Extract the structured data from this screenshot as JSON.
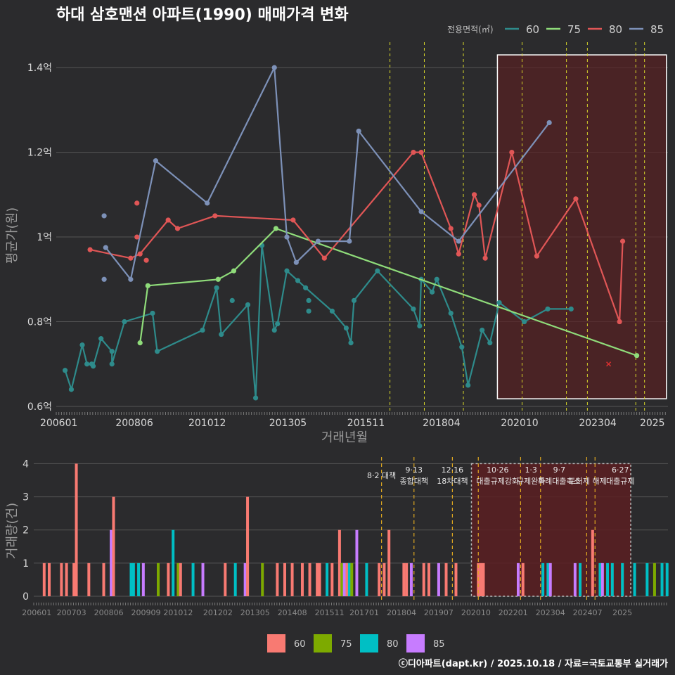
{
  "chart_data": [
    {
      "type": "line",
      "title": "하대 삼호맨션 아파트(1990) 매매가격 변화",
      "xlabel": "거래년월",
      "ylabel": "평균가(원)",
      "ylim": [
        0.59,
        1.46
      ],
      "y_unit": "억",
      "y_ticks": [
        {
          "value": 0.6,
          "label": "0.6억"
        },
        {
          "value": 0.8,
          "label": "0.8억"
        },
        {
          "value": 1.0,
          "label": "1억"
        },
        {
          "value": 1.2,
          "label": "1.2억"
        },
        {
          "value": 1.4,
          "label": "1.4억"
        }
      ],
      "x_range": [
        2005.917,
        2025.5
      ],
      "x_ticks": [
        {
          "value": 2006.0,
          "label": "200601"
        },
        {
          "value": 2008.417,
          "label": "200806"
        },
        {
          "value": 2010.75,
          "label": "201012"
        },
        {
          "value": 2013.333,
          "label": "201305"
        },
        {
          "value": 2015.833,
          "label": "201511"
        },
        {
          "value": 2018.25,
          "label": "201804"
        },
        {
          "value": 2020.75,
          "label": "202010"
        },
        {
          "value": 2023.25,
          "label": "202304"
        },
        {
          "value": 2025.0,
          "label": "2025"
        }
      ],
      "legend_title": "전용면적(㎡)",
      "legend_placement": "top-right",
      "series": [
        {
          "name": "60",
          "color": "#2e8b8b",
          "points": [
            [
              2006.2,
              0.685
            ],
            [
              2006.4,
              0.64
            ],
            [
              2006.75,
              0.745
            ],
            [
              2006.9,
              0.7
            ],
            [
              2007.05,
              0.7
            ],
            [
              2007.1,
              0.695
            ],
            [
              2007.35,
              0.76
            ],
            [
              2007.7,
              0.73
            ],
            [
              2007.7,
              0.7
            ],
            [
              2008.1,
              0.8
            ],
            [
              2009.0,
              0.82
            ],
            [
              2009.15,
              0.73
            ],
            [
              2010.6,
              0.78
            ],
            [
              2011.05,
              0.88
            ],
            [
              2011.2,
              0.77
            ],
            [
              2012.05,
              0.84
            ],
            [
              2012.3,
              0.62
            ],
            [
              2012.5,
              0.98
            ],
            [
              2012.9,
              0.78
            ],
            [
              2013.0,
              0.795
            ],
            [
              2013.3,
              0.92
            ],
            [
              2013.65,
              0.897
            ],
            [
              2013.9,
              0.88
            ],
            [
              2014.75,
              0.825
            ],
            [
              2015.2,
              0.785
            ],
            [
              2015.35,
              0.75
            ],
            [
              2015.45,
              0.85
            ],
            [
              2016.2,
              0.92
            ],
            [
              2017.35,
              0.83
            ],
            [
              2017.55,
              0.79
            ],
            [
              2017.6,
              0.9
            ],
            [
              2017.95,
              0.87
            ],
            [
              2018.1,
              0.9
            ],
            [
              2018.55,
              0.82
            ],
            [
              2018.9,
              0.74
            ],
            [
              2019.1,
              0.65
            ],
            [
              2019.55,
              0.78
            ],
            [
              2019.8,
              0.75
            ],
            [
              2020.1,
              0.845
            ],
            [
              2020.9,
              0.8
            ],
            [
              2021.65,
              0.83
            ],
            [
              2022.4,
              0.83
            ]
          ]
        },
        {
          "name": "75",
          "color": "#8fdc7a",
          "points": [
            [
              2008.6,
              0.75
            ],
            [
              2008.85,
              0.885
            ],
            [
              2011.1,
              0.9
            ],
            [
              2011.6,
              0.92
            ],
            [
              2012.95,
              1.02
            ],
            [
              2024.5,
              0.72
            ]
          ]
        },
        {
          "name": "80",
          "color": "#e05656",
          "points": [
            [
              2007.0,
              0.97
            ],
            [
              2008.3,
              0.95
            ],
            [
              2008.6,
              0.96
            ],
            [
              2009.5,
              1.04
            ],
            [
              2009.8,
              1.02
            ],
            [
              2011.0,
              1.05
            ],
            [
              2013.5,
              1.04
            ],
            [
              2014.5,
              0.95
            ],
            [
              2017.35,
              1.2
            ],
            [
              2017.6,
              1.2
            ],
            [
              2018.55,
              1.02
            ],
            [
              2018.8,
              0.96
            ],
            [
              2019.3,
              1.1
            ],
            [
              2019.45,
              1.075
            ],
            [
              2019.65,
              0.95
            ],
            [
              2020.5,
              1.2
            ],
            [
              2021.3,
              0.955
            ],
            [
              2022.55,
              1.09
            ],
            [
              2023.95,
              0.8
            ],
            [
              2024.05,
              0.99
            ]
          ]
        },
        {
          "name": "85",
          "color": "#7d91b8",
          "points": [
            [
              2007.5,
              0.975
            ],
            [
              2008.3,
              0.9
            ],
            [
              2009.1,
              1.18
            ],
            [
              2010.75,
              1.08
            ],
            [
              2012.9,
              1.4
            ],
            [
              2013.3,
              1.0
            ],
            [
              2013.6,
              0.94
            ],
            [
              2014.3,
              0.99
            ],
            [
              2015.3,
              0.99
            ],
            [
              2015.6,
              1.25
            ],
            [
              2017.6,
              1.06
            ],
            [
              2018.8,
              0.99
            ],
            [
              2021.7,
              1.27
            ]
          ]
        }
      ],
      "isolated_points": [
        {
          "series": "85",
          "x": 2007.45,
          "y": 1.05
        },
        {
          "series": "85",
          "x": 2007.45,
          "y": 0.9
        },
        {
          "series": "80",
          "x": 2008.5,
          "y": 1.08
        },
        {
          "series": "80",
          "x": 2008.5,
          "y": 1.0
        },
        {
          "series": "80",
          "x": 2008.8,
          "y": 0.945
        },
        {
          "series": "60",
          "x": 2011.55,
          "y": 0.85
        },
        {
          "series": "60",
          "x": 2014.0,
          "y": 0.85
        },
        {
          "series": "60",
          "x": 2014.0,
          "y": 0.825
        }
      ],
      "marker_x": {
        "x": 2023.6,
        "y": 0.7,
        "color": "#e03030"
      },
      "policy_lines": [
        2016.6,
        2017.7,
        2018.95,
        2020.83,
        2022.25,
        2022.92,
        2024.47,
        2024.75
      ],
      "highlight_range": [
        2020.04,
        2025.45
      ]
    },
    {
      "type": "bar",
      "ylabel": "거래량(건)",
      "ylim": [
        0,
        4.2
      ],
      "y_ticks": [
        0,
        1,
        2,
        3,
        4
      ],
      "x_ticks": [
        {
          "value": 2006.0,
          "label": "200601"
        },
        {
          "value": 2007.167,
          "label": "200703"
        },
        {
          "value": 2008.417,
          "label": "200806"
        },
        {
          "value": 2009.667,
          "label": "200909"
        },
        {
          "value": 2010.75,
          "label": "201012"
        },
        {
          "value": 2012.083,
          "label": "201202"
        },
        {
          "value": 2013.333,
          "label": "201305"
        },
        {
          "value": 2014.583,
          "label": "201408"
        },
        {
          "value": 2015.833,
          "label": "201511"
        },
        {
          "value": 2017.0,
          "label": "201701"
        },
        {
          "value": 2018.25,
          "label": "201804"
        },
        {
          "value": 2019.5,
          "label": "201907"
        },
        {
          "value": 2020.75,
          "label": "202010"
        },
        {
          "value": 2022.0,
          "label": "202201"
        },
        {
          "value": 2023.25,
          "label": "202304"
        },
        {
          "value": 2024.5,
          "label": "202407"
        },
        {
          "value": 2025.667,
          "label": "2025"
        }
      ],
      "legend_placement": "bottom",
      "legend": [
        {
          "name": "60",
          "color": "#f87a72"
        },
        {
          "name": "75",
          "color": "#7daa00"
        },
        {
          "name": "80",
          "color": "#00bfc4"
        },
        {
          "name": "85",
          "color": "#c77cff"
        }
      ],
      "bars": [
        {
          "x": 2006.25,
          "v": 1,
          "s": "60"
        },
        {
          "x": 2006.42,
          "v": 1,
          "s": "60"
        },
        {
          "x": 2006.83,
          "v": 1,
          "s": "60"
        },
        {
          "x": 2007.0,
          "v": 1,
          "s": "60"
        },
        {
          "x": 2007.25,
          "v": 1,
          "s": "60"
        },
        {
          "x": 2007.33,
          "v": 4,
          "s": "60"
        },
        {
          "x": 2007.75,
          "v": 1,
          "s": "60"
        },
        {
          "x": 2008.25,
          "v": 1,
          "s": "60"
        },
        {
          "x": 2008.5,
          "v": 2,
          "s": "85"
        },
        {
          "x": 2008.58,
          "v": 3,
          "s": "60"
        },
        {
          "x": 2009.17,
          "v": 1,
          "s": "80"
        },
        {
          "x": 2009.25,
          "v": 1,
          "s": "80"
        },
        {
          "x": 2009.42,
          "v": 1,
          "s": "80"
        },
        {
          "x": 2009.58,
          "v": 1,
          "s": "85"
        },
        {
          "x": 2010.08,
          "v": 1,
          "s": "75"
        },
        {
          "x": 2010.42,
          "v": 1,
          "s": "60"
        },
        {
          "x": 2010.58,
          "v": 2,
          "s": "80"
        },
        {
          "x": 2010.75,
          "v": 1,
          "s": "75"
        },
        {
          "x": 2010.83,
          "v": 1,
          "s": "60"
        },
        {
          "x": 2011.25,
          "v": 1,
          "s": "80"
        },
        {
          "x": 2011.58,
          "v": 1,
          "s": "85"
        },
        {
          "x": 2012.33,
          "v": 1,
          "s": "60"
        },
        {
          "x": 2012.67,
          "v": 1,
          "s": "80"
        },
        {
          "x": 2013.0,
          "v": 1,
          "s": "85"
        },
        {
          "x": 2013.08,
          "v": 2,
          "s": "75"
        },
        {
          "x": 2013.08,
          "v": 1,
          "s": "85"
        },
        {
          "x": 2013.08,
          "v": 3,
          "s": "60"
        },
        {
          "x": 2013.58,
          "v": 1,
          "s": "75"
        },
        {
          "x": 2014.08,
          "v": 1,
          "s": "60"
        },
        {
          "x": 2014.33,
          "v": 1,
          "s": "60"
        },
        {
          "x": 2014.58,
          "v": 1,
          "s": "60"
        },
        {
          "x": 2014.92,
          "v": 1,
          "s": "60"
        },
        {
          "x": 2015.17,
          "v": 1,
          "s": "60"
        },
        {
          "x": 2015.42,
          "v": 1,
          "s": "60"
        },
        {
          "x": 2015.5,
          "v": 1,
          "s": "60"
        },
        {
          "x": 2015.75,
          "v": 1,
          "s": "80"
        },
        {
          "x": 2015.92,
          "v": 1,
          "s": "60"
        },
        {
          "x": 2016.17,
          "v": 2,
          "s": "60"
        },
        {
          "x": 2016.25,
          "v": 1,
          "s": "75"
        },
        {
          "x": 2016.33,
          "v": 1,
          "s": "85"
        },
        {
          "x": 2016.42,
          "v": 1,
          "s": "60"
        },
        {
          "x": 2016.5,
          "v": 1,
          "s": "80"
        },
        {
          "x": 2016.58,
          "v": 1,
          "s": "75"
        },
        {
          "x": 2016.75,
          "v": 2,
          "s": "85"
        },
        {
          "x": 2017.08,
          "v": 1,
          "s": "80"
        },
        {
          "x": 2017.5,
          "v": 1,
          "s": "60"
        },
        {
          "x": 2017.67,
          "v": 1,
          "s": "60"
        },
        {
          "x": 2017.83,
          "v": 2,
          "s": "60"
        },
        {
          "x": 2018.33,
          "v": 1,
          "s": "60"
        },
        {
          "x": 2018.42,
          "v": 1,
          "s": "60"
        },
        {
          "x": 2018.58,
          "v": 1,
          "s": "85"
        },
        {
          "x": 2019.0,
          "v": 1,
          "s": "60"
        },
        {
          "x": 2019.17,
          "v": 1,
          "s": "60"
        },
        {
          "x": 2019.5,
          "v": 1,
          "s": "85"
        },
        {
          "x": 2019.75,
          "v": 1,
          "s": "60"
        },
        {
          "x": 2020.08,
          "v": 1,
          "s": "60"
        },
        {
          "x": 2020.83,
          "v": 1,
          "s": "60"
        },
        {
          "x": 2020.92,
          "v": 1,
          "s": "60"
        },
        {
          "x": 2021.0,
          "v": 1,
          "s": "60"
        },
        {
          "x": 2022.17,
          "v": 1,
          "s": "85"
        },
        {
          "x": 2022.33,
          "v": 1,
          "s": "60"
        },
        {
          "x": 2023.0,
          "v": 1,
          "s": "80"
        },
        {
          "x": 2023.17,
          "v": 1,
          "s": "80"
        },
        {
          "x": 2023.25,
          "v": 1,
          "s": "85"
        },
        {
          "x": 2024.08,
          "v": 1,
          "s": "85"
        },
        {
          "x": 2024.25,
          "v": 1,
          "s": "80"
        },
        {
          "x": 2024.67,
          "v": 2,
          "s": "60"
        },
        {
          "x": 2024.92,
          "v": 1,
          "s": "80"
        },
        {
          "x": 2025.0,
          "v": 1,
          "s": "85"
        },
        {
          "x": 2025.17,
          "v": 1,
          "s": "80"
        },
        {
          "x": 2025.33,
          "v": 1,
          "s": "80"
        },
        {
          "x": 2025.67,
          "v": 1,
          "s": "80"
        },
        {
          "x": 2026.08,
          "v": 1,
          "s": "80"
        },
        {
          "x": 2026.5,
          "v": 1,
          "s": "80"
        },
        {
          "x": 2026.75,
          "v": 1,
          "s": "75"
        },
        {
          "x": 2027.0,
          "v": 1,
          "s": "80"
        },
        {
          "x": 2027.17,
          "v": 1,
          "s": "80"
        }
      ],
      "policy_lines": [
        2017.58,
        2018.67,
        2019.96,
        2020.83,
        2022.25,
        2022.92,
        2024.47,
        2024.75
      ],
      "policy_labels": [
        {
          "x": 2017.58,
          "lines": [
            "8·2 대책"
          ]
        },
        {
          "x": 2018.67,
          "lines": [
            "9·13",
            "종합대책"
          ]
        },
        {
          "x": 2019.96,
          "lines": [
            "12·16",
            "18차대책"
          ]
        },
        {
          "x": 2021.48,
          "lines": [
            "10·26",
            "대출규제강화"
          ]
        },
        {
          "x": 2022.6,
          "lines": [
            "1·3",
            "규제완화"
          ]
        },
        {
          "x": 2023.55,
          "lines": [
            "9·7",
            "특례대출축소"
          ]
        },
        {
          "x": 2024.5,
          "lines": [
            "",
            "토허제 해제"
          ]
        },
        {
          "x": 2025.6,
          "lines": [
            "6·27",
            "대출규제"
          ]
        }
      ],
      "highlight_range": [
        2020.6,
        2025.95
      ]
    }
  ],
  "footer": "ⓒ디아파트(dapt.kr) / 2025.10.18 / 자료=국토교통부 실거래가"
}
